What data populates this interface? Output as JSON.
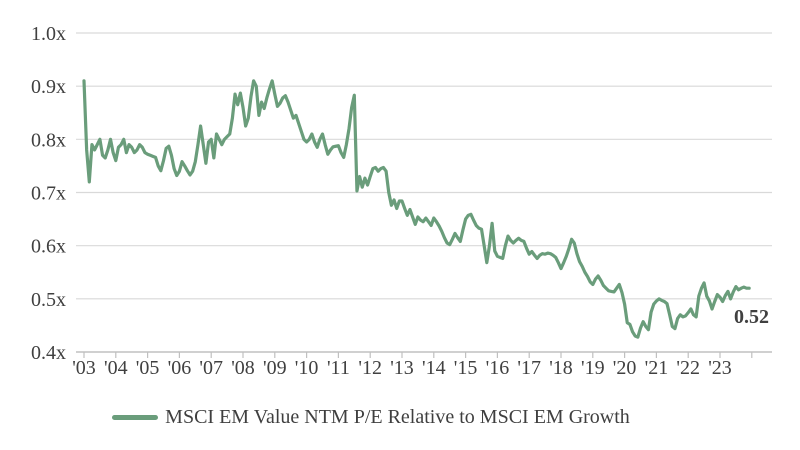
{
  "chart_data": {
    "type": "line",
    "title": "",
    "ylim": [
      0.4,
      1.0
    ],
    "y_tick_labels": [
      "1.0x",
      "0.9x",
      "0.8x",
      "0.7x",
      "0.6x",
      "0.5x",
      "0.4x"
    ],
    "x_tick_labels": [
      "'03",
      "'04",
      "'05",
      "'06",
      "'07",
      "'08",
      "'09",
      "'10",
      "'11",
      "'12",
      "'13",
      "'14",
      "'15",
      "'16",
      "'17",
      "'18",
      "'19",
      "'20",
      "'21",
      "'22",
      "'23"
    ],
    "x_start_year": 2003,
    "points_per_year": 12,
    "grid": true,
    "legend_position": "bottom",
    "end_label": {
      "text": "0.52",
      "color": "#5f9170"
    },
    "colors": {
      "line": "#6a9d7b",
      "gridline": "#d9d9d9",
      "axis": "#c0c0c0",
      "tick_text": "#404040"
    },
    "series": [
      {
        "name": "MSCI EM Value NTM P/E Relative to MSCI EM Growth",
        "color": "#6a9d7b",
        "values": [
          0.91,
          0.78,
          0.72,
          0.79,
          0.78,
          0.79,
          0.8,
          0.77,
          0.765,
          0.78,
          0.8,
          0.775,
          0.76,
          0.785,
          0.79,
          0.8,
          0.775,
          0.79,
          0.785,
          0.775,
          0.78,
          0.79,
          0.785,
          0.775,
          0.772,
          0.77,
          0.768,
          0.766,
          0.75,
          0.741,
          0.76,
          0.783,
          0.787,
          0.77,
          0.745,
          0.732,
          0.74,
          0.758,
          0.75,
          0.741,
          0.733,
          0.74,
          0.758,
          0.79,
          0.825,
          0.79,
          0.755,
          0.795,
          0.8,
          0.765,
          0.81,
          0.8,
          0.79,
          0.8,
          0.805,
          0.81,
          0.84,
          0.885,
          0.865,
          0.887,
          0.86,
          0.825,
          0.84,
          0.88,
          0.91,
          0.9,
          0.845,
          0.87,
          0.858,
          0.878,
          0.895,
          0.91,
          0.885,
          0.862,
          0.868,
          0.878,
          0.882,
          0.87,
          0.855,
          0.84,
          0.845,
          0.83,
          0.815,
          0.8,
          0.795,
          0.8,
          0.81,
          0.795,
          0.785,
          0.8,
          0.81,
          0.79,
          0.772,
          0.78,
          0.786,
          0.787,
          0.788,
          0.775,
          0.766,
          0.79,
          0.82,
          0.86,
          0.883,
          0.703,
          0.73,
          0.71,
          0.727,
          0.714,
          0.73,
          0.745,
          0.747,
          0.74,
          0.745,
          0.747,
          0.74,
          0.7,
          0.676,
          0.686,
          0.67,
          0.684,
          0.684,
          0.67,
          0.657,
          0.668,
          0.654,
          0.64,
          0.654,
          0.648,
          0.645,
          0.652,
          0.645,
          0.638,
          0.652,
          0.645,
          0.637,
          0.627,
          0.615,
          0.605,
          0.602,
          0.612,
          0.623,
          0.615,
          0.608,
          0.63,
          0.65,
          0.657,
          0.659,
          0.648,
          0.638,
          0.633,
          0.631,
          0.6,
          0.568,
          0.6,
          0.642,
          0.59,
          0.58,
          0.578,
          0.576,
          0.6,
          0.618,
          0.61,
          0.605,
          0.61,
          0.614,
          0.61,
          0.608,
          0.595,
          0.584,
          0.589,
          0.582,
          0.576,
          0.582,
          0.585,
          0.584,
          0.586,
          0.585,
          0.582,
          0.578,
          0.568,
          0.557,
          0.568,
          0.58,
          0.595,
          0.612,
          0.605,
          0.585,
          0.57,
          0.561,
          0.55,
          0.542,
          0.532,
          0.527,
          0.537,
          0.543,
          0.535,
          0.525,
          0.52,
          0.515,
          0.514,
          0.513,
          0.52,
          0.527,
          0.512,
          0.49,
          0.455,
          0.452,
          0.438,
          0.43,
          0.428,
          0.445,
          0.457,
          0.448,
          0.442,
          0.475,
          0.49,
          0.496,
          0.5,
          0.497,
          0.495,
          0.491,
          0.47,
          0.448,
          0.444,
          0.463,
          0.47,
          0.466,
          0.468,
          0.474,
          0.481,
          0.47,
          0.466,
          0.505,
          0.52,
          0.53,
          0.505,
          0.496,
          0.481,
          0.495,
          0.508,
          0.503,
          0.495,
          0.506,
          0.514,
          0.5,
          0.513,
          0.523,
          0.517,
          0.52,
          0.522,
          0.52,
          0.52
        ]
      }
    ]
  }
}
